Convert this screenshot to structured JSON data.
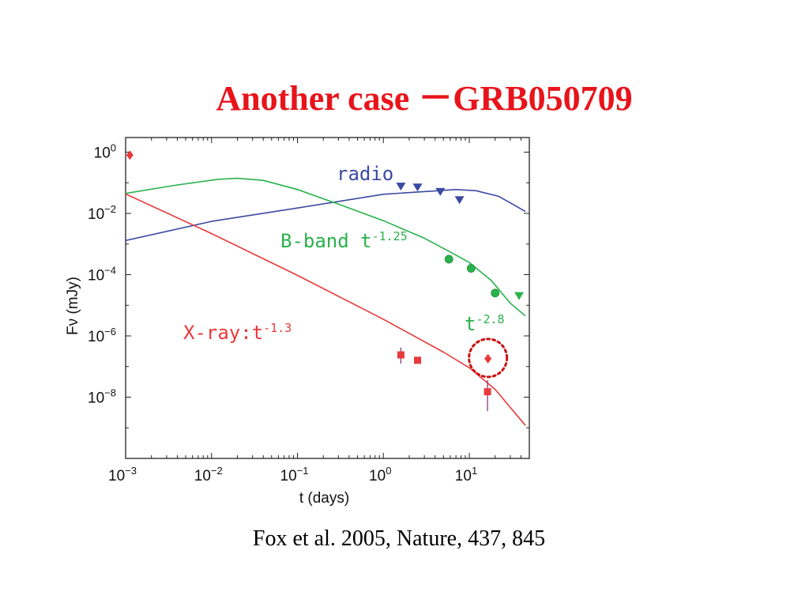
{
  "slide": {
    "title": "Another case －GRB050709",
    "citation": "Fox et al. 2005, Nature, 437, 845"
  },
  "chart_data": {
    "type": "scatter",
    "xscale": "log",
    "yscale": "log",
    "xlim": [
      0.001,
      50
    ],
    "ylim": [
      1e-10,
      3
    ],
    "xlabel": "t (days)",
    "ylabel": "Fν (mJy)",
    "xticks": [
      {
        "base": "10",
        "exp": "−3",
        "value": 0.001
      },
      {
        "base": "10",
        "exp": "−2",
        "value": 0.01
      },
      {
        "base": "10",
        "exp": "−1",
        "value": 0.1
      },
      {
        "base": "10",
        "exp": "0",
        "value": 1
      },
      {
        "base": "10",
        "exp": "1",
        "value": 10
      }
    ],
    "yticks": [
      {
        "base": "10",
        "exp": "0",
        "value": 1
      },
      {
        "base": "10",
        "exp": "−2",
        "value": 0.01
      },
      {
        "base": "10",
        "exp": "−4",
        "value": 0.0001
      },
      {
        "base": "10",
        "exp": "−6",
        "value": 1e-06
      },
      {
        "base": "10",
        "exp": "−8",
        "value": 1e-08
      }
    ],
    "series": [
      {
        "key": "radio",
        "color": "#3a4aa3",
        "model": [
          [
            0.001,
            0.0013
          ],
          [
            0.01,
            0.0055
          ],
          [
            0.1,
            0.015
          ],
          [
            1,
            0.042
          ],
          [
            7,
            0.06
          ],
          [
            12,
            0.055
          ],
          [
            22,
            0.036
          ],
          [
            32,
            0.02
          ],
          [
            45,
            0.0115
          ]
        ],
        "points": [
          {
            "x": 1.6,
            "y": 0.075,
            "marker": "tri-down"
          },
          {
            "x": 2.5,
            "y": 0.07,
            "marker": "tri-down"
          },
          {
            "x": 4.6,
            "y": 0.05,
            "marker": "tri-down"
          },
          {
            "x": 7.7,
            "y": 0.027,
            "marker": "tri-down"
          }
        ]
      },
      {
        "key": "optical",
        "color": "#29b24b",
        "model": [
          [
            0.001,
            0.045
          ],
          [
            0.004,
            0.085
          ],
          [
            0.012,
            0.13
          ],
          [
            0.02,
            0.14
          ],
          [
            0.04,
            0.12
          ],
          [
            0.1,
            0.06
          ],
          [
            0.3,
            0.02
          ],
          [
            1,
            0.0058
          ],
          [
            3,
            0.00155
          ],
          [
            6,
            0.00055
          ],
          [
            10,
            0.00025
          ],
          [
            18,
            6.52e-05
          ],
          [
            30,
            1.17e-05
          ],
          [
            45,
            4.5e-06
          ]
        ],
        "points": [
          {
            "x": 5.8,
            "y": 0.00032,
            "marker": "circle"
          },
          {
            "x": 10.5,
            "y": 0.00016,
            "marker": "circle"
          },
          {
            "x": 20,
            "y": 2.5e-05,
            "marker": "circle"
          },
          {
            "x": 38,
            "y": 2e-05,
            "marker": "tri-down"
          }
        ]
      },
      {
        "key": "xray",
        "color": "#e83a3a",
        "model": [
          [
            0.001,
            0.043
          ],
          [
            0.01,
            0.0022
          ],
          [
            0.1,
            9.5e-05
          ],
          [
            1,
            3.5e-06
          ],
          [
            5,
            2.95e-07
          ],
          [
            10,
            9.1e-08
          ],
          [
            20,
            1.8e-08
          ],
          [
            45,
            1.2e-09
          ]
        ],
        "points": [
          {
            "x": 0.00112,
            "y": 0.8,
            "marker": "diamond",
            "err": [
              0.68,
              0.94
            ]
          },
          {
            "x": 1.6,
            "y": 2.4e-07,
            "marker": "square",
            "err": [
              1.25e-07,
              4.2e-07
            ]
          },
          {
            "x": 2.5,
            "y": 1.6e-07,
            "marker": "square"
          },
          {
            "x": 16.5,
            "y": 1.8e-07,
            "marker": "diamond"
          },
          {
            "x": 16.3,
            "y": 1.5e-08,
            "marker": "square",
            "err": [
              3.5e-09,
              3.6e-08
            ]
          }
        ]
      }
    ],
    "annotations": {
      "radio": {
        "text": "radio",
        "color": "#3a4aa3"
      },
      "bband": {
        "text": "B-band t",
        "sup": "-1.25",
        "color": "#29b24b"
      },
      "late": {
        "text": "t",
        "sup": "-2.8",
        "color": "#29b24b"
      },
      "xray": {
        "text": "X-ray:t",
        "sup": "-1.3",
        "color": "#e83a3a"
      }
    },
    "highlight": {
      "x": 16.5,
      "y": 1.8e-07,
      "color": "#cc1111",
      "style": "dotted-circle"
    }
  }
}
